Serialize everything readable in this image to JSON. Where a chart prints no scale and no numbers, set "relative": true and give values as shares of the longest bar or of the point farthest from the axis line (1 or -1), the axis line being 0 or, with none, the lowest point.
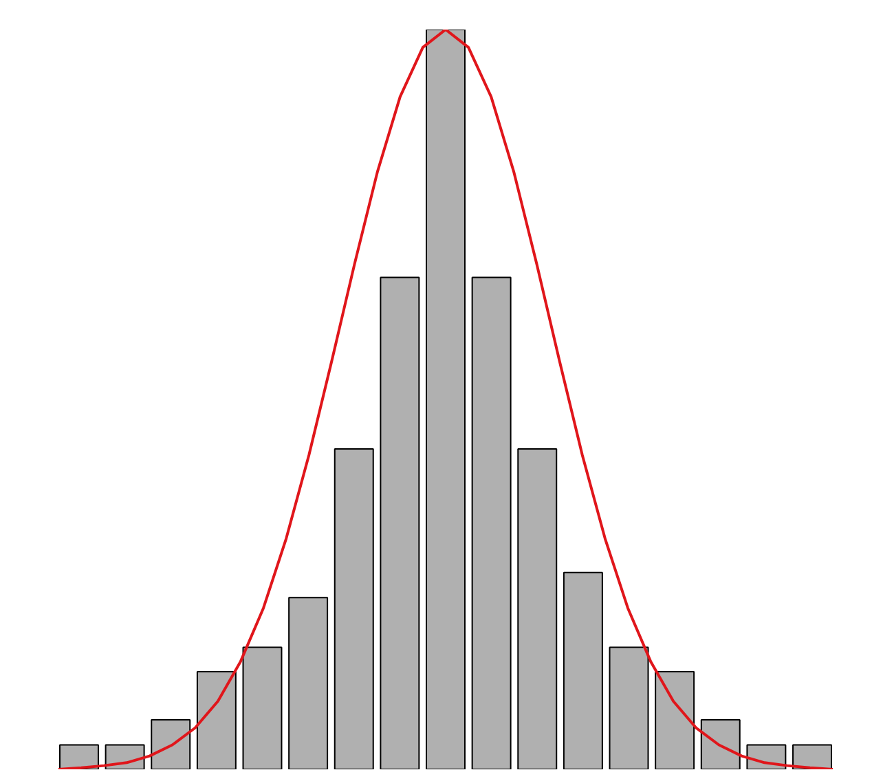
{
  "chart_data": [
    {
      "type": "bar",
      "relative": true,
      "grid": false,
      "categories": [
        null,
        null,
        null,
        null,
        null,
        null,
        null,
        null,
        null,
        null,
        null,
        null,
        null,
        null,
        null,
        null,
        null
      ],
      "series": [
        {
          "color": "#b0b0b0",
          "values": [
            0.033,
            0.033,
            0.067,
            0.132,
            0.165,
            0.232,
            0.433,
            0.665,
            1,
            0.665,
            0.433,
            0.266,
            0.165,
            0.132,
            0.067,
            0.033,
            0.033
          ]
        }
      ]
    },
    {
      "type": "line",
      "relative": true,
      "grid": false,
      "categories": [
        null,
        null,
        null,
        null,
        null,
        null,
        null,
        null,
        null,
        null,
        null,
        null,
        null,
        null,
        null,
        null,
        null,
        null,
        null,
        null,
        null,
        null,
        null,
        null,
        null,
        null,
        null,
        null,
        null,
        null,
        null,
        null,
        null,
        null,
        null
      ],
      "series": [
        {
          "color": "#e0161b",
          "values": [
            0,
            0.002,
            0.005,
            0.009,
            0.018,
            0.033,
            0.056,
            0.092,
            0.146,
            0.218,
            0.312,
            0.425,
            0.552,
            0.683,
            0.807,
            0.909,
            0.976,
            1,
            0.976,
            0.909,
            0.807,
            0.683,
            0.552,
            0.425,
            0.312,
            0.218,
            0.146,
            0.092,
            0.056,
            0.033,
            0.018,
            0.009,
            0.005,
            0.002,
            0
          ]
        }
      ]
    }
  ]
}
